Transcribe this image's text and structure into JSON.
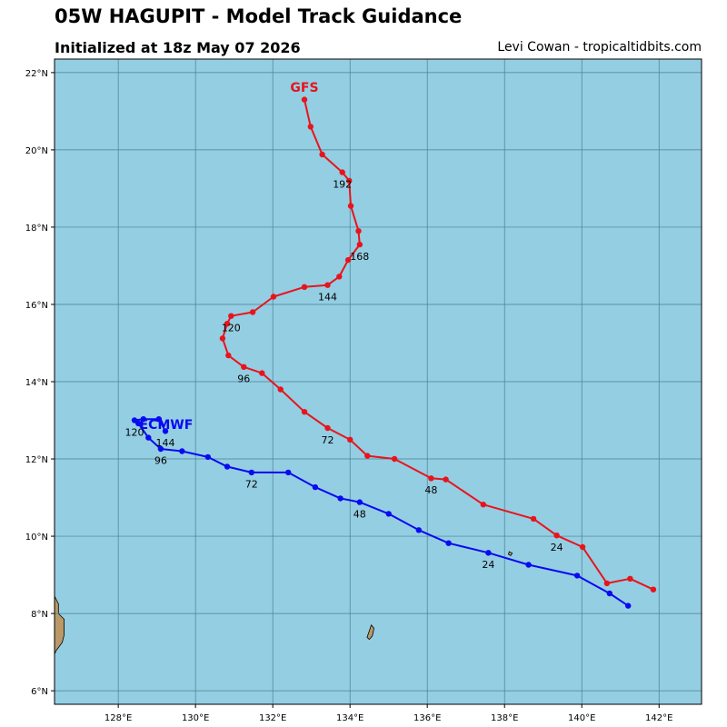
{
  "header": {
    "title": "05W HAGUPIT - Model Track Guidance",
    "subtitle": "Initialized at 18z May 07 2026",
    "credit": "Levi Cowan - tropicaltidbits.com"
  },
  "map": {
    "extent": {
      "lon": [
        126.35,
        143.1
      ],
      "lat": [
        5.65,
        22.35
      ]
    },
    "background_color": "#94cee3",
    "land_color": "#b99968",
    "grid_color": "#4a7f8f",
    "x_ticks": [
      128,
      130,
      132,
      134,
      136,
      138,
      140,
      142
    ],
    "x_tick_labels": [
      "128°E",
      "130°E",
      "132°E",
      "134°E",
      "136°E",
      "138°E",
      "140°E",
      "142°E"
    ],
    "y_ticks": [
      6,
      8,
      10,
      12,
      14,
      16,
      18,
      20,
      22
    ],
    "y_tick_labels": [
      "6°N",
      "8°N",
      "10°N",
      "12°N",
      "14°N",
      "16°N",
      "18°N",
      "20°N",
      "22°N"
    ],
    "land": [
      {
        "name": "west-landmass",
        "points": [
          [
            126.35,
            8.45
          ],
          [
            126.45,
            8.25
          ],
          [
            126.45,
            8.0
          ],
          [
            126.6,
            7.85
          ],
          [
            126.6,
            7.45
          ],
          [
            126.55,
            7.25
          ],
          [
            126.4,
            7.05
          ],
          [
            126.35,
            6.95
          ]
        ]
      },
      {
        "name": "island-south",
        "points": [
          [
            134.55,
            7.7
          ],
          [
            134.62,
            7.62
          ],
          [
            134.58,
            7.42
          ],
          [
            134.5,
            7.33
          ],
          [
            134.44,
            7.38
          ],
          [
            134.5,
            7.55
          ]
        ]
      },
      {
        "name": "island-east",
        "points": [
          [
            138.12,
            9.6
          ],
          [
            138.2,
            9.56
          ],
          [
            138.16,
            9.5
          ],
          [
            138.1,
            9.53
          ]
        ]
      }
    ]
  },
  "chart_data": {
    "type": "map-track",
    "series": [
      {
        "name": "GFS",
        "color": "#e8141b",
        "points": [
          [
            141.85,
            8.62
          ],
          [
            141.25,
            8.9
          ],
          [
            140.65,
            8.78
          ],
          [
            140.02,
            9.72
          ],
          [
            139.35,
            10.02
          ],
          [
            138.75,
            10.45
          ],
          [
            137.45,
            10.82
          ],
          [
            136.48,
            11.47
          ],
          [
            136.1,
            11.5
          ],
          [
            135.15,
            12.0
          ],
          [
            134.45,
            12.08
          ],
          [
            134.0,
            12.5
          ],
          [
            133.42,
            12.8
          ],
          [
            132.82,
            13.22
          ],
          [
            132.2,
            13.8
          ],
          [
            131.72,
            14.22
          ],
          [
            131.25,
            14.38
          ],
          [
            130.85,
            14.68
          ],
          [
            130.7,
            15.12
          ],
          [
            130.82,
            15.5
          ],
          [
            130.92,
            15.7
          ],
          [
            131.48,
            15.8
          ],
          [
            132.02,
            16.2
          ],
          [
            132.82,
            16.45
          ],
          [
            133.42,
            16.5
          ],
          [
            133.72,
            16.72
          ],
          [
            133.95,
            17.15
          ],
          [
            134.25,
            17.55
          ],
          [
            134.22,
            17.9
          ],
          [
            134.02,
            18.55
          ],
          [
            133.98,
            19.2
          ],
          [
            133.8,
            19.42
          ],
          [
            133.28,
            19.88
          ],
          [
            132.98,
            20.6
          ],
          [
            132.82,
            21.3
          ]
        ],
        "track_labels": [
          {
            "text": "24",
            "lon": 139.35,
            "lat": 9.72
          },
          {
            "text": "48",
            "lon": 136.1,
            "lat": 11.2
          },
          {
            "text": "72",
            "lon": 133.42,
            "lat": 12.5
          },
          {
            "text": "96",
            "lon": 131.25,
            "lat": 14.08
          },
          {
            "text": "120",
            "lon": 130.92,
            "lat": 15.4
          },
          {
            "text": "144",
            "lon": 133.42,
            "lat": 16.2
          },
          {
            "text": "168",
            "lon": 134.25,
            "lat": 17.25
          },
          {
            "text": "192",
            "lon": 133.8,
            "lat": 19.12
          }
        ],
        "model_label": {
          "text": "GFS",
          "lon": 132.82,
          "lat": 21.62
        }
      },
      {
        "name": "ECMWF",
        "color": "#0a0af0",
        "points": [
          [
            141.2,
            8.2
          ],
          [
            140.72,
            8.52
          ],
          [
            139.88,
            8.98
          ],
          [
            138.62,
            9.26
          ],
          [
            137.58,
            9.57
          ],
          [
            136.55,
            9.82
          ],
          [
            135.78,
            10.16
          ],
          [
            135.0,
            10.58
          ],
          [
            134.25,
            10.88
          ],
          [
            133.75,
            10.98
          ],
          [
            133.1,
            11.27
          ],
          [
            132.4,
            11.65
          ],
          [
            131.45,
            11.65
          ],
          [
            130.82,
            11.8
          ],
          [
            130.32,
            12.05
          ],
          [
            129.65,
            12.2
          ],
          [
            129.1,
            12.26
          ],
          [
            128.78,
            12.55
          ],
          [
            128.52,
            12.92
          ],
          [
            128.42,
            13.0
          ],
          [
            128.65,
            13.03
          ],
          [
            129.05,
            13.03
          ],
          [
            129.22,
            12.72
          ]
        ],
        "track_labels": [
          {
            "text": "24",
            "lon": 137.58,
            "lat": 9.27
          },
          {
            "text": "48",
            "lon": 134.25,
            "lat": 10.58
          },
          {
            "text": "72",
            "lon": 131.45,
            "lat": 11.35
          },
          {
            "text": "96",
            "lon": 129.1,
            "lat": 11.96
          },
          {
            "text": "120",
            "lon": 128.42,
            "lat": 12.7
          },
          {
            "text": "144",
            "lon": 129.22,
            "lat": 12.42
          }
        ],
        "model_label": {
          "text": "ECMWF",
          "lon": 128.55,
          "lat": 12.9
        }
      }
    ]
  }
}
